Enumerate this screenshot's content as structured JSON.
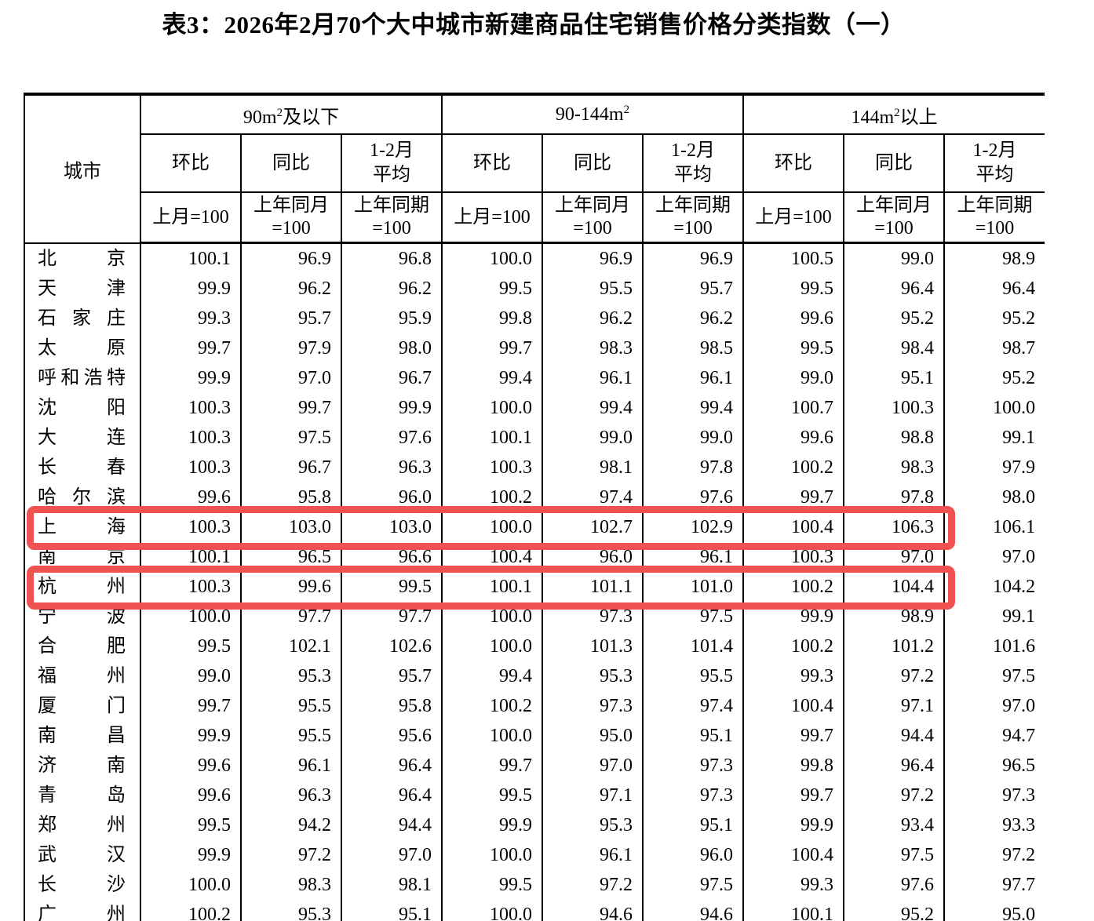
{
  "title": "表3：2026年2月70个大中城市新建商品住宅销售价格分类指数（一）",
  "highlight_color": "#f05151",
  "table": {
    "city_header": "城市",
    "groups": [
      {
        "pre": "90m",
        "sup": "2",
        "post": "及以下"
      },
      {
        "pre": "90-144m",
        "sup": "2",
        "post": ""
      },
      {
        "pre": "144m",
        "sup": "2",
        "post": "以上"
      }
    ],
    "metric_headers": [
      {
        "lines": [
          "环比"
        ]
      },
      {
        "lines": [
          "同比"
        ]
      },
      {
        "lines": [
          "1-2月",
          "平均"
        ]
      }
    ],
    "base_headers": [
      {
        "lines": [
          "上月=100"
        ]
      },
      {
        "lines": [
          "上年同月",
          "=100"
        ]
      },
      {
        "lines": [
          "上年同期",
          "=100"
        ]
      }
    ],
    "rows": [
      {
        "city": "北京",
        "highlighted": false,
        "values": [
          "100.1",
          "96.9",
          "96.8",
          "100.0",
          "96.9",
          "96.9",
          "100.5",
          "99.0",
          "98.9"
        ]
      },
      {
        "city": "天津",
        "highlighted": false,
        "values": [
          "99.9",
          "96.2",
          "96.2",
          "99.5",
          "95.5",
          "95.7",
          "99.5",
          "96.4",
          "96.4"
        ]
      },
      {
        "city": "石家庄",
        "highlighted": false,
        "values": [
          "99.3",
          "95.7",
          "95.9",
          "99.8",
          "96.2",
          "96.2",
          "99.6",
          "95.2",
          "95.2"
        ]
      },
      {
        "city": "太原",
        "highlighted": false,
        "values": [
          "99.7",
          "97.9",
          "98.0",
          "99.7",
          "98.3",
          "98.5",
          "99.5",
          "98.4",
          "98.7"
        ]
      },
      {
        "city": "呼和浩特",
        "highlighted": false,
        "values": [
          "99.9",
          "97.0",
          "96.7",
          "99.4",
          "96.1",
          "96.1",
          "99.0",
          "95.1",
          "95.2"
        ]
      },
      {
        "city": "沈阳",
        "highlighted": false,
        "values": [
          "100.3",
          "99.7",
          "99.9",
          "100.0",
          "99.4",
          "99.4",
          "100.7",
          "100.3",
          "100.0"
        ]
      },
      {
        "city": "大连",
        "highlighted": false,
        "values": [
          "100.3",
          "97.5",
          "97.6",
          "100.1",
          "99.0",
          "99.0",
          "99.6",
          "98.8",
          "99.1"
        ]
      },
      {
        "city": "长春",
        "highlighted": false,
        "values": [
          "100.3",
          "96.7",
          "96.3",
          "100.3",
          "98.1",
          "97.8",
          "100.2",
          "98.3",
          "97.9"
        ]
      },
      {
        "city": "哈尔滨",
        "highlighted": false,
        "values": [
          "99.6",
          "95.8",
          "96.0",
          "100.2",
          "97.4",
          "97.6",
          "99.7",
          "97.8",
          "98.0"
        ]
      },
      {
        "city": "上海",
        "highlighted": true,
        "values": [
          "100.3",
          "103.0",
          "103.0",
          "100.0",
          "102.7",
          "102.9",
          "100.4",
          "106.3",
          "106.1"
        ]
      },
      {
        "city": "南京",
        "highlighted": false,
        "values": [
          "100.1",
          "96.5",
          "96.6",
          "100.4",
          "96.0",
          "96.1",
          "100.3",
          "97.0",
          "97.0"
        ]
      },
      {
        "city": "杭州",
        "highlighted": true,
        "values": [
          "100.3",
          "99.6",
          "99.5",
          "100.1",
          "101.1",
          "101.0",
          "100.2",
          "104.4",
          "104.2"
        ]
      },
      {
        "city": "宁波",
        "highlighted": false,
        "values": [
          "100.0",
          "97.7",
          "97.7",
          "100.0",
          "97.3",
          "97.5",
          "99.9",
          "98.9",
          "99.1"
        ]
      },
      {
        "city": "合肥",
        "highlighted": false,
        "values": [
          "99.5",
          "102.1",
          "102.6",
          "100.0",
          "101.3",
          "101.4",
          "100.2",
          "101.2",
          "101.6"
        ]
      },
      {
        "city": "福州",
        "highlighted": false,
        "values": [
          "99.0",
          "95.3",
          "95.7",
          "99.4",
          "95.3",
          "95.5",
          "99.3",
          "97.2",
          "97.5"
        ]
      },
      {
        "city": "厦门",
        "highlighted": false,
        "values": [
          "99.7",
          "95.5",
          "95.8",
          "100.2",
          "97.3",
          "97.4",
          "100.4",
          "97.1",
          "97.0"
        ]
      },
      {
        "city": "南昌",
        "highlighted": false,
        "values": [
          "99.9",
          "95.5",
          "95.6",
          "100.0",
          "95.0",
          "95.1",
          "99.7",
          "94.4",
          "94.7"
        ]
      },
      {
        "city": "济南",
        "highlighted": false,
        "values": [
          "99.6",
          "96.1",
          "96.4",
          "99.7",
          "97.0",
          "97.3",
          "99.8",
          "96.4",
          "96.5"
        ]
      },
      {
        "city": "青岛",
        "highlighted": false,
        "values": [
          "99.6",
          "96.3",
          "96.4",
          "99.5",
          "97.1",
          "97.3",
          "99.7",
          "97.2",
          "97.3"
        ]
      },
      {
        "city": "郑州",
        "highlighted": false,
        "values": [
          "99.5",
          "94.2",
          "94.4",
          "99.9",
          "95.3",
          "95.1",
          "99.9",
          "93.4",
          "93.3"
        ]
      },
      {
        "city": "武汉",
        "highlighted": false,
        "values": [
          "99.9",
          "97.2",
          "97.0",
          "100.0",
          "96.1",
          "96.0",
          "100.4",
          "97.5",
          "97.2"
        ]
      },
      {
        "city": "长沙",
        "highlighted": false,
        "values": [
          "100.0",
          "98.3",
          "98.1",
          "99.5",
          "97.2",
          "97.5",
          "99.3",
          "97.6",
          "97.7"
        ]
      },
      {
        "city": "广州",
        "highlighted": false,
        "values": [
          "100.2",
          "95.3",
          "95.1",
          "100.0",
          "94.6",
          "94.6",
          "100.1",
          "95.2",
          "95.0"
        ]
      }
    ]
  }
}
